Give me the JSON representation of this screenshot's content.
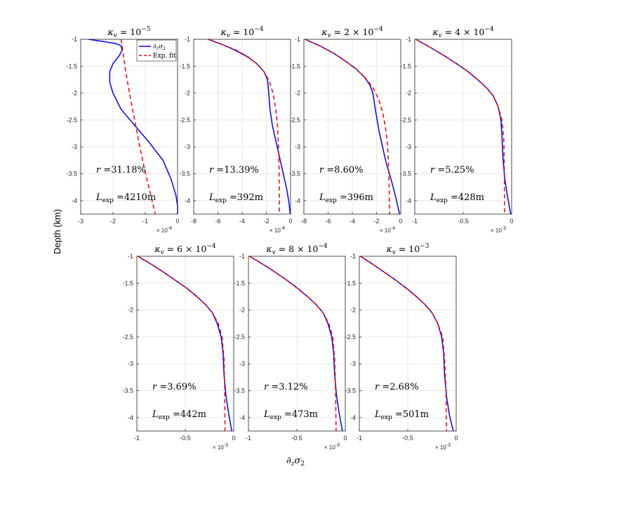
{
  "figure": {
    "ylabel": "Depth (km)",
    "xlabel_main": "∂",
    "xlabel_sub1": "z",
    "xlabel_mid": "σ",
    "xlabel_sub2": "2"
  },
  "legend": {
    "panel": 0,
    "entries": [
      {
        "label": "∂zσ2",
        "main": "∂",
        "sub1": "z",
        "mid": "σ",
        "sub2": "2",
        "color": "#0000ff",
        "style": "solid"
      },
      {
        "label": "Exp. fit",
        "main": "Exp. fit",
        "color": "#ff0000",
        "style": "dashed"
      }
    ]
  },
  "colors": {
    "data": "#0000ff",
    "fit": "#ff0000"
  },
  "chart_data": [
    {
      "type": "line",
      "title": "κv = 10^-5",
      "title_kappa": "κ",
      "title_sub": "v",
      "title_eq": " = ",
      "title_base": "10",
      "title_sup": "−5",
      "r_prefix": "r =",
      "r_text": "31.18%",
      "L_main": "L",
      "L_sub": "exp",
      "L_text": " =4210m",
      "xlim": [
        -3,
        0
      ],
      "xticks": [
        -3,
        -2,
        -1,
        0
      ],
      "xticklabels": [
        "-3",
        "-2",
        "-1",
        "0"
      ],
      "x_exponent_base": "× 10",
      "x_exponent_power": "-4",
      "ylim": [
        -4.25,
        -1
      ],
      "yticks": [
        -1,
        -1.5,
        -2,
        -2.5,
        -3,
        -3.5,
        -4
      ],
      "yticklabels": [
        "-1",
        "-1.5",
        "-2",
        "-2.5",
        "-3",
        "-3.5",
        "-4"
      ],
      "series": [
        {
          "name": "∂zσ2",
          "x": [
            -2.75,
            -2.3,
            -1.9,
            -1.75,
            -1.72,
            -1.8,
            -2.0,
            -2.1,
            -2.1,
            -2.0,
            -1.75,
            -1.4,
            -0.9,
            -0.45,
            -0.2,
            -0.05,
            0.0,
            0.0
          ],
          "y": [
            -1.0,
            -1.04,
            -1.08,
            -1.12,
            -1.2,
            -1.3,
            -1.45,
            -1.6,
            -1.8,
            -2.0,
            -2.3,
            -2.55,
            -2.9,
            -3.25,
            -3.6,
            -3.9,
            -4.1,
            -4.25
          ]
        },
        {
          "name": "Exp. fit",
          "x": [
            -1.75,
            -1.69,
            -1.63,
            -1.56,
            -1.49,
            -1.41,
            -1.33,
            -1.25,
            -1.17,
            -1.08,
            -0.99,
            -0.89,
            -0.79,
            -0.69
          ],
          "y": [
            -1.0,
            -1.25,
            -1.5,
            -1.75,
            -2.0,
            -2.25,
            -2.5,
            -2.75,
            -3.0,
            -3.25,
            -3.5,
            -3.75,
            -4.0,
            -4.25
          ]
        }
      ]
    },
    {
      "type": "line",
      "title": "κv = 10^-4",
      "title_kappa": "κ",
      "title_sub": "v",
      "title_eq": " = ",
      "title_base": "10",
      "title_sup": "−4",
      "r_prefix": "r =",
      "r_text": "13.39%",
      "L_main": "L",
      "L_sub": "exp",
      "L_text": " =392m",
      "xlim": [
        -8,
        0
      ],
      "xticks": [
        -8,
        -6,
        -4,
        -2,
        0
      ],
      "xticklabels": [
        "-8",
        "-6",
        "-4",
        "-2",
        "0"
      ],
      "x_exponent_base": "× 10",
      "x_exponent_power": "-4",
      "ylim": [
        -4.25,
        -1
      ],
      "yticks": [
        -1,
        -1.5,
        -2,
        -2.5,
        -3,
        -3.5,
        -4
      ],
      "yticklabels": [
        "-1",
        "-1.5",
        "-2",
        "-2.5",
        "-3",
        "-3.5",
        "-4"
      ],
      "series": [
        {
          "name": "∂zσ2",
          "x": [
            -6.8,
            -5.6,
            -4.6,
            -3.6,
            -2.8,
            -2.2,
            -1.9,
            -1.8,
            -1.7,
            -1.5,
            -1.2,
            -0.9,
            -0.6,
            -0.3,
            -0.12,
            -0.03
          ],
          "y": [
            -1.0,
            -1.1,
            -1.2,
            -1.32,
            -1.45,
            -1.6,
            -1.75,
            -2.0,
            -2.3,
            -2.6,
            -2.9,
            -3.2,
            -3.5,
            -3.8,
            -4.05,
            -4.25
          ]
        },
        {
          "name": "Exp. fit",
          "x": [
            -6.8,
            -5.6,
            -4.5,
            -3.55,
            -2.8,
            -2.2,
            -1.75,
            -1.45,
            -1.22,
            -1.08,
            -1.0,
            -0.95,
            -0.93,
            -0.92
          ],
          "y": [
            -1.0,
            -1.1,
            -1.2,
            -1.32,
            -1.45,
            -1.6,
            -1.78,
            -2.0,
            -2.3,
            -2.6,
            -3.0,
            -3.4,
            -3.8,
            -4.25
          ]
        }
      ]
    },
    {
      "type": "line",
      "title": "κv = 2 × 10^-4",
      "title_kappa": "κ",
      "title_sub": "v",
      "title_eq": " = 2 × ",
      "title_base": "10",
      "title_sup": "−4",
      "r_prefix": "r =",
      "r_text": "8.60%",
      "L_main": "L",
      "L_sub": "exp",
      "L_text": " =396m",
      "xlim": [
        -8,
        0
      ],
      "xticks": [
        -8,
        -6,
        -4,
        -2,
        0
      ],
      "xticklabels": [
        "-8",
        "-6",
        "-4",
        "-2",
        "0"
      ],
      "x_exponent_base": "× 10",
      "x_exponent_power": "-4",
      "ylim": [
        -4.25,
        -1
      ],
      "yticks": [
        -1,
        -1.5,
        -2,
        -2.5,
        -3,
        -3.5,
        -4
      ],
      "yticklabels": [
        "-1",
        "-1.5",
        "-2",
        "-2.5",
        "-3",
        "-3.5",
        "-4"
      ],
      "series": [
        {
          "name": "∂zσ2",
          "x": [
            -7.9,
            -6.7,
            -5.6,
            -4.6,
            -3.7,
            -3.0,
            -2.55,
            -2.3,
            -2.1,
            -1.8,
            -1.5,
            -1.2,
            -0.8,
            -0.4,
            -0.1
          ],
          "y": [
            -1.0,
            -1.12,
            -1.25,
            -1.4,
            -1.55,
            -1.7,
            -1.85,
            -2.0,
            -2.3,
            -2.7,
            -3.0,
            -3.3,
            -3.6,
            -3.95,
            -4.25
          ]
        },
        {
          "name": "Exp. fit",
          "x": [
            -7.9,
            -6.7,
            -5.6,
            -4.6,
            -3.7,
            -2.9,
            -2.3,
            -1.85,
            -1.5,
            -1.25,
            -1.08,
            -1.0,
            -0.95,
            -0.93
          ],
          "y": [
            -1.0,
            -1.12,
            -1.25,
            -1.4,
            -1.55,
            -1.72,
            -1.9,
            -2.1,
            -2.35,
            -2.65,
            -3.0,
            -3.4,
            -3.8,
            -4.25
          ]
        }
      ]
    },
    {
      "type": "line",
      "title": "κv = 4 × 10^-4",
      "title_kappa": "κ",
      "title_sub": "v",
      "title_eq": " = 4 × ",
      "title_base": "10",
      "title_sup": "−4",
      "r_prefix": "r =",
      "r_text": "5.25%",
      "L_main": "L",
      "L_sub": "exp",
      "L_text": " =428m",
      "xlim": [
        -1,
        0
      ],
      "xticks": [
        -1,
        -0.5,
        0
      ],
      "xticklabels": [
        "-1",
        "-0.5",
        "0"
      ],
      "x_exponent_base": "× 10",
      "x_exponent_power": "-3",
      "ylim": [
        -4.25,
        -1
      ],
      "yticks": [
        -1,
        -1.5,
        -2,
        -2.5,
        -3,
        -3.5,
        -4
      ],
      "yticklabels": [
        "-1",
        "-1.5",
        "-2",
        "-2.5",
        "-3",
        "-3.5",
        "-4"
      ],
      "series": [
        {
          "name": "∂zσ2",
          "x": [
            -0.99,
            -0.84,
            -0.7,
            -0.57,
            -0.45,
            -0.35,
            -0.26,
            -0.19,
            -0.14,
            -0.11,
            -0.1,
            -0.09,
            -0.07,
            -0.04,
            -0.01
          ],
          "y": [
            -1.0,
            -1.15,
            -1.3,
            -1.45,
            -1.6,
            -1.75,
            -1.9,
            -2.05,
            -2.25,
            -2.5,
            -2.8,
            -3.2,
            -3.6,
            -3.95,
            -4.25
          ]
        },
        {
          "name": "Exp. fit",
          "x": [
            -0.99,
            -0.84,
            -0.7,
            -0.57,
            -0.45,
            -0.35,
            -0.26,
            -0.19,
            -0.14,
            -0.1,
            -0.08,
            -0.075,
            -0.073
          ],
          "y": [
            -1.0,
            -1.15,
            -1.3,
            -1.45,
            -1.6,
            -1.75,
            -1.9,
            -2.05,
            -2.25,
            -2.5,
            -2.9,
            -3.5,
            -4.25
          ]
        }
      ]
    },
    {
      "type": "line",
      "title": "κv = 6 × 10^-4",
      "title_kappa": "κ",
      "title_sub": "v",
      "title_eq": " = 6 × ",
      "title_base": "10",
      "title_sup": "−4",
      "r_prefix": "r =",
      "r_text": "3.69%",
      "L_main": "L",
      "L_sub": "exp",
      "L_text": " =442m",
      "xlim": [
        -1,
        0
      ],
      "xticks": [
        -1,
        -0.5,
        0
      ],
      "xticklabels": [
        "-1",
        "-0.5",
        "0"
      ],
      "x_exponent_base": "× 10",
      "x_exponent_power": "-3",
      "ylim": [
        -4.25,
        -1
      ],
      "yticks": [
        -1,
        -1.5,
        -2,
        -2.5,
        -3,
        -3.5,
        -4
      ],
      "yticklabels": [
        "-1",
        "-1.5",
        "-2",
        "-2.5",
        "-3",
        "-3.5",
        "-4"
      ],
      "series": [
        {
          "name": "∂zσ2",
          "x": [
            -0.99,
            -0.85,
            -0.72,
            -0.6,
            -0.48,
            -0.38,
            -0.29,
            -0.22,
            -0.17,
            -0.13,
            -0.11,
            -0.1,
            -0.08,
            -0.05,
            -0.02
          ],
          "y": [
            -1.0,
            -1.15,
            -1.3,
            -1.45,
            -1.6,
            -1.75,
            -1.9,
            -2.05,
            -2.25,
            -2.5,
            -2.8,
            -3.2,
            -3.6,
            -3.95,
            -4.25
          ]
        },
        {
          "name": "Exp. fit",
          "x": [
            -0.99,
            -0.85,
            -0.72,
            -0.6,
            -0.48,
            -0.38,
            -0.29,
            -0.22,
            -0.16,
            -0.12,
            -0.1,
            -0.093,
            -0.09
          ],
          "y": [
            -1.0,
            -1.15,
            -1.3,
            -1.45,
            -1.6,
            -1.75,
            -1.9,
            -2.05,
            -2.25,
            -2.5,
            -2.9,
            -3.5,
            -4.25
          ]
        }
      ]
    },
    {
      "type": "line",
      "title": "κv = 8 × 10^-4",
      "title_kappa": "κ",
      "title_sub": "v",
      "title_eq": " = 8 × ",
      "title_base": "10",
      "title_sup": "−4",
      "r_prefix": "r =",
      "r_text": "3.12%",
      "L_main": "L",
      "L_sub": "exp",
      "L_text": " =473m",
      "xlim": [
        -1,
        0
      ],
      "xticks": [
        -1,
        -0.5,
        0
      ],
      "xticklabels": [
        "-1",
        "-0.5",
        "0"
      ],
      "x_exponent_base": "× 10",
      "x_exponent_power": "-3",
      "ylim": [
        -4.25,
        -1
      ],
      "yticks": [
        -1,
        -1.5,
        -2,
        -2.5,
        -3,
        -3.5,
        -4
      ],
      "yticklabels": [
        "-1",
        "-1.5",
        "-2",
        "-2.5",
        "-3",
        "-3.5",
        "-4"
      ],
      "series": [
        {
          "name": "∂zσ2",
          "x": [
            -0.99,
            -0.85,
            -0.72,
            -0.6,
            -0.49,
            -0.39,
            -0.3,
            -0.23,
            -0.18,
            -0.14,
            -0.12,
            -0.11,
            -0.09,
            -0.06,
            -0.03
          ],
          "y": [
            -1.0,
            -1.15,
            -1.3,
            -1.45,
            -1.6,
            -1.75,
            -1.9,
            -2.05,
            -2.25,
            -2.5,
            -2.8,
            -3.2,
            -3.6,
            -3.95,
            -4.25
          ]
        },
        {
          "name": "Exp. fit",
          "x": [
            -0.99,
            -0.85,
            -0.72,
            -0.6,
            -0.49,
            -0.39,
            -0.3,
            -0.23,
            -0.17,
            -0.13,
            -0.11,
            -0.1,
            -0.095
          ],
          "y": [
            -1.0,
            -1.15,
            -1.3,
            -1.45,
            -1.6,
            -1.75,
            -1.9,
            -2.05,
            -2.25,
            -2.5,
            -2.9,
            -3.5,
            -4.25
          ]
        }
      ]
    },
    {
      "type": "line",
      "title": "κv = 10^-3",
      "title_kappa": "κ",
      "title_sub": "v",
      "title_eq": " = ",
      "title_base": "10",
      "title_sup": "−3",
      "r_prefix": "r =",
      "r_text": "2.68%",
      "L_main": "L",
      "L_sub": "exp",
      "L_text": " =501m",
      "xlim": [
        -1,
        0
      ],
      "xticks": [
        -1,
        -0.5,
        0
      ],
      "xticklabels": [
        "-1",
        "-0.5",
        "0"
      ],
      "x_exponent_base": "× 10",
      "x_exponent_power": "-3",
      "ylim": [
        -4.25,
        -1
      ],
      "yticks": [
        -1,
        -1.5,
        -2,
        -2.5,
        -3,
        -3.5,
        -4
      ],
      "yticklabels": [
        "-1",
        "-1.5",
        "-2",
        "-2.5",
        "-3",
        "-3.5",
        "-4"
      ],
      "series": [
        {
          "name": "∂zσ2",
          "x": [
            -0.99,
            -0.86,
            -0.74,
            -0.62,
            -0.51,
            -0.41,
            -0.32,
            -0.25,
            -0.19,
            -0.15,
            -0.13,
            -0.12,
            -0.1,
            -0.07,
            -0.03
          ],
          "y": [
            -1.0,
            -1.15,
            -1.3,
            -1.45,
            -1.6,
            -1.75,
            -1.9,
            -2.05,
            -2.25,
            -2.5,
            -2.8,
            -3.2,
            -3.6,
            -3.95,
            -4.25
          ]
        },
        {
          "name": "Exp. fit",
          "x": [
            -0.99,
            -0.86,
            -0.74,
            -0.62,
            -0.51,
            -0.41,
            -0.32,
            -0.25,
            -0.19,
            -0.14,
            -0.12,
            -0.105,
            -0.1
          ],
          "y": [
            -1.0,
            -1.15,
            -1.3,
            -1.45,
            -1.6,
            -1.75,
            -1.9,
            -2.05,
            -2.25,
            -2.5,
            -2.9,
            -3.5,
            -4.25
          ]
        }
      ]
    }
  ]
}
